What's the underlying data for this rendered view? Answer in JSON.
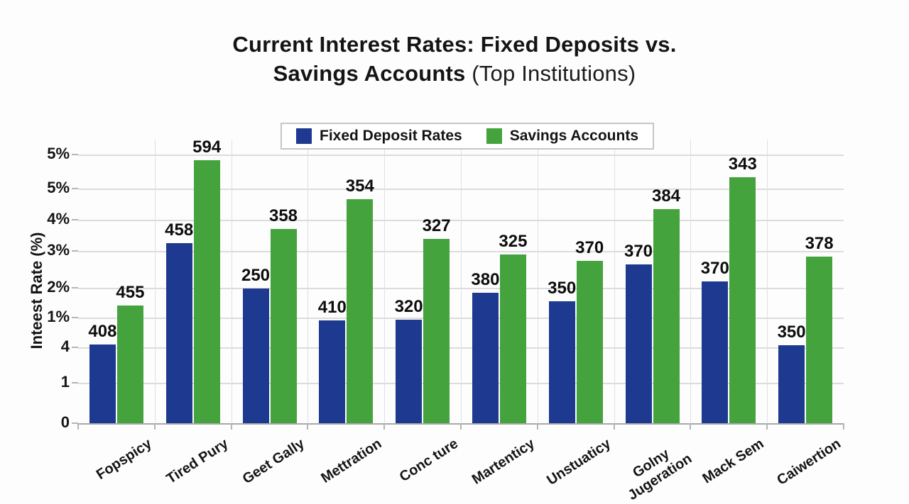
{
  "title": {
    "line1": "Current Interest Rates: Fixed Deposits vs.",
    "line2_bold": "Savings Accounts",
    "line2_light": " (Top Institutions)"
  },
  "legend": {
    "items": [
      {
        "label": "Fixed Deposit Rates",
        "color": "#1e3a90"
      },
      {
        "label": "Savings Accounts",
        "color": "#45a33e"
      }
    ]
  },
  "chart_data": {
    "type": "bar",
    "title": "Current Interest Rates: Fixed Deposits vs. Savings Accounts (Top Institutions)",
    "xlabel": "",
    "ylabel": "Inteest Rate (%)",
    "legend_position": "top-center",
    "grid": true,
    "categories": [
      "Fopspicy",
      "Tired Pury",
      "Geet Gally",
      "Mettration",
      "Conc ture",
      "Martenticy",
      "Unstuaticy",
      "Golny\nJugeration",
      "Mack Sem",
      "Caiwertion"
    ],
    "series": [
      {
        "name": "Fixed Deposit Rates",
        "color": "#1e3a90",
        "values": [
          408,
          458,
          250,
          410,
          320,
          380,
          350,
          370,
          370,
          350
        ],
        "bar_height_pct_of_plot": [
          27.8,
          63.5,
          47.5,
          36.3,
          36.5,
          46.0,
          43.0,
          56.0,
          50.0,
          27.5
        ]
      },
      {
        "name": "Savings Accounts",
        "color": "#45a33e",
        "values": [
          455,
          594,
          358,
          354,
          327,
          325,
          370,
          384,
          343,
          378
        ],
        "bar_height_pct_of_plot": [
          41.5,
          92.8,
          68.5,
          79.0,
          65.0,
          59.5,
          57.3,
          75.5,
          86.8,
          58.8
        ]
      }
    ],
    "y_tick_labels": [
      "5%",
      "5%",
      "4%",
      "3%",
      "2%",
      "1%",
      "4",
      "1",
      "0"
    ],
    "y_tick_offsets_pct_from_top": [
      5.3,
      17.3,
      28.3,
      39.3,
      52.3,
      62.8,
      73.3,
      85.8,
      100
    ]
  }
}
